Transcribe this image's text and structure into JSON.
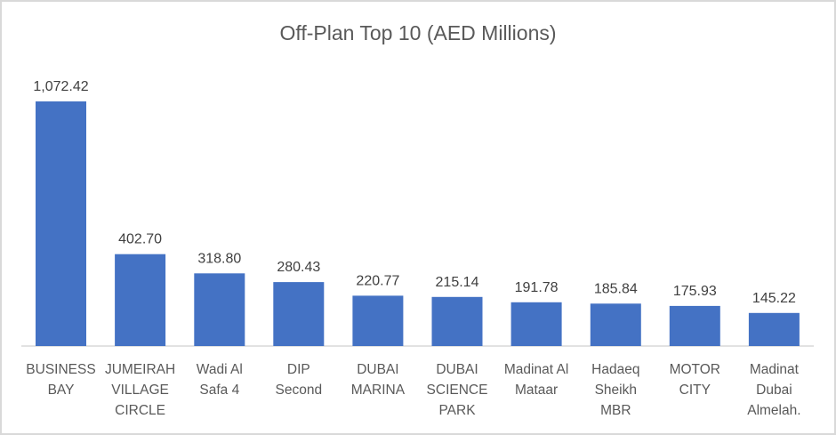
{
  "chart_data": {
    "type": "bar",
    "title": "Off-Plan Top 10 (AED Millions)",
    "xlabel": "",
    "ylabel": "",
    "grid": false,
    "legend": "none",
    "ylim": [
      0,
      1072.42
    ],
    "bar_color": "#4472C4",
    "categories": [
      [
        "BUSINESS",
        "BAY"
      ],
      [
        "JUMEIRAH",
        "VILLAGE",
        "CIRCLE"
      ],
      [
        "Wadi Al",
        "Safa 4"
      ],
      [
        "DIP",
        "Second"
      ],
      [
        "DUBAI",
        "MARINA"
      ],
      [
        "DUBAI",
        "SCIENCE",
        "PARK"
      ],
      [
        "Madinat Al",
        "Mataar"
      ],
      [
        "Hadaeq",
        "Sheikh",
        "MBR"
      ],
      [
        "MOTOR",
        "CITY"
      ],
      [
        "Madinat",
        "Dubai",
        "Almelah."
      ]
    ],
    "values": [
      1072.42,
      402.7,
      318.8,
      280.43,
      220.77,
      215.14,
      191.78,
      185.84,
      175.93,
      145.22
    ],
    "labels": [
      "1,072.42",
      "402.70",
      "318.80",
      "280.43",
      "220.77",
      "215.14",
      "191.78",
      "185.84",
      "175.93",
      "145.22"
    ]
  }
}
